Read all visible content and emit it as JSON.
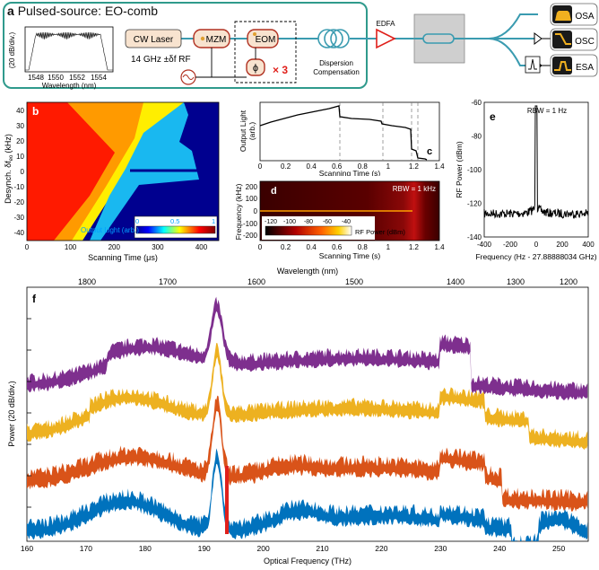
{
  "panel_a": {
    "letter": "a",
    "title": "Pulsed-source: EO-comb",
    "inset_ylabel": "(20 dB/div.)",
    "inset_xlabel": "Wavelength (nm)",
    "inset_ticks": [
      "1548",
      "1550",
      "1552",
      "1554"
    ],
    "cw_laser": "CW Laser",
    "mzm": "MZM",
    "eom": "EOM",
    "phase": "ϕ",
    "times3": "× 3",
    "rf": "14 GHz ±δf RF",
    "dispersion": [
      "Dispersion",
      "Compensation"
    ],
    "edfa": "EDFA",
    "osa": "OSA",
    "osc": "OSC",
    "esa": "ESA"
  },
  "panel_b": {
    "letter": "b",
    "ylabel": "Desynch. δf",
    "ylabel_sub": "eo",
    "ylabel_unit": "(kHz)",
    "xlabel": "Scanning Time (μs)",
    "xticks": [
      "0",
      "100",
      "200",
      "300",
      "400"
    ],
    "yticks": [
      "40",
      "30",
      "20",
      "10",
      "0",
      "-10",
      "-20",
      "-30",
      "-40"
    ],
    "colorbar_label": "Output Light (arb.)",
    "colorbar_ticks": [
      "0",
      "0.5",
      "1"
    ]
  },
  "panel_c": {
    "letter": "c",
    "ylabel": [
      "Output Light",
      "(arb.)"
    ],
    "xlabel": "Scanning Time (s)",
    "xticks": [
      "0",
      "0.2",
      "0.4",
      "0.6",
      "0.8",
      "1",
      "1.2",
      "1.4"
    ]
  },
  "panel_d": {
    "letter": "d",
    "ylabel": "Frequency (kHz)",
    "xlabel": "Scanning Time (s)",
    "xticks": [
      "0",
      "0.2",
      "0.4",
      "0.6",
      "0.8",
      "1",
      "1.2",
      "1.4"
    ],
    "yticks": [
      "200",
      "100",
      "0",
      "-100",
      "-200"
    ],
    "rbw": "RBW = 1 kHz",
    "colorbar_label": "RF Power (dBm)",
    "colorbar_ticks": [
      "-120",
      "-100",
      "-80",
      "-60",
      "-40"
    ]
  },
  "panel_e": {
    "letter": "e",
    "ylabel": "RF Power (dBm)",
    "xlabel": "Frequency (Hz - 27.88888034 GHz)",
    "xticks": [
      "-400",
      "-200",
      "0",
      "200",
      "400"
    ],
    "yticks": [
      "-60",
      "-80",
      "-100",
      "-120",
      "-140"
    ],
    "rbw": "RBW = 1 Hz"
  },
  "panel_f": {
    "letter": "f",
    "top_xlabel": "Wavelength (nm)",
    "top_xticks": [
      "1800",
      "1700",
      "1600",
      "1500",
      "1400",
      "1300",
      "1200"
    ],
    "xlabel": "Optical Frequency (THz)",
    "xticks": [
      "160",
      "170",
      "180",
      "190",
      "200",
      "210",
      "220",
      "230",
      "240",
      "250"
    ],
    "ylabel": "Power (20 dB/div.)"
  },
  "colors": {
    "teal": "#2f9a8c",
    "purple": "#7e2f8e",
    "yellow": "#edb120",
    "orange": "#d95319",
    "blue": "#0072bd",
    "red": "#e0201b"
  }
}
